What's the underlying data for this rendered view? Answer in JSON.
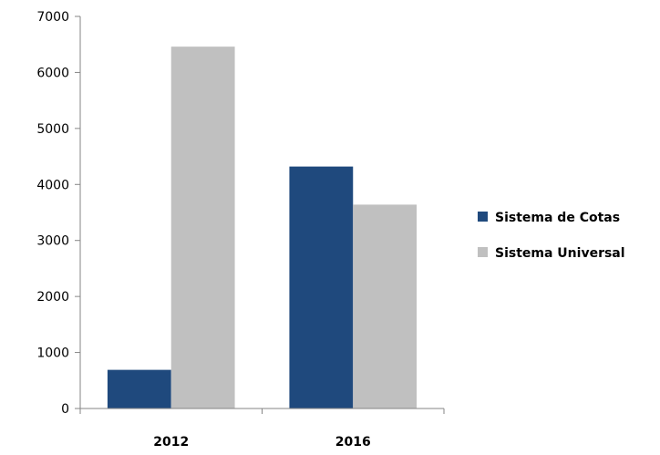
{
  "chart_data": {
    "type": "bar",
    "categories": [
      "2012",
      "2016"
    ],
    "series": [
      {
        "name": "Sistema de Cotas",
        "values": [
          690,
          4320
        ],
        "color": "#1f497d"
      },
      {
        "name": "Sistema Universal",
        "values": [
          6460,
          3640
        ],
        "color": "#c0c0c0"
      }
    ],
    "ylim": [
      0,
      7000
    ],
    "yticks": [
      0,
      1000,
      2000,
      3000,
      4000,
      5000,
      6000,
      7000
    ],
    "grid": false,
    "legend_position": "right",
    "title": "",
    "xlabel": "",
    "ylabel": ""
  }
}
